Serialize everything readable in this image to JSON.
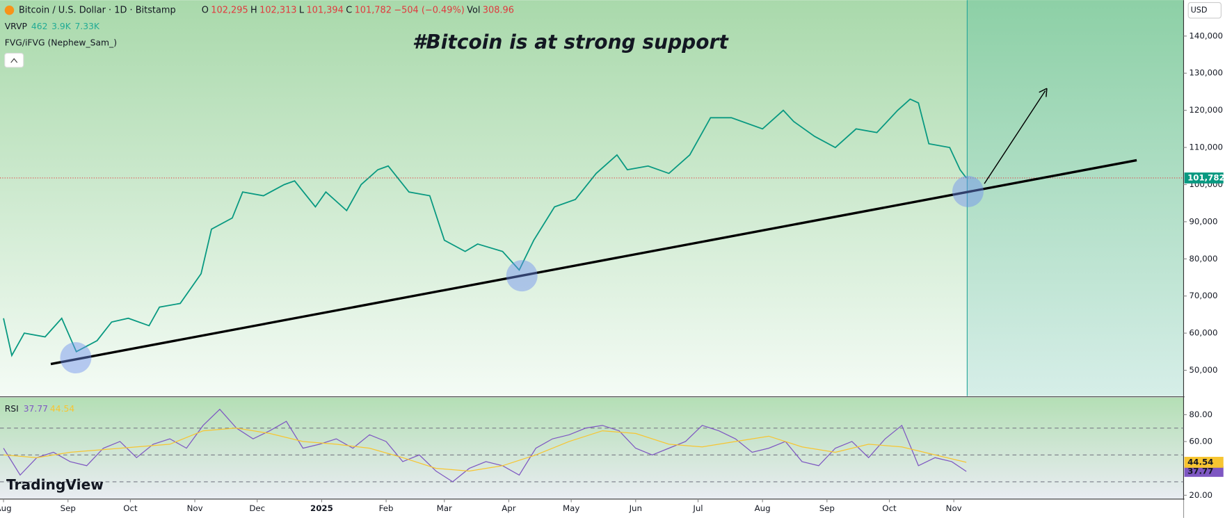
{
  "header": {
    "symbol": "Bitcoin / U.S. Dollar · 1D · Bitstamp",
    "ohlc": [
      {
        "key": "O",
        "value": "102,295"
      },
      {
        "key": "H",
        "value": "102,313"
      },
      {
        "key": "L",
        "value": "101,394"
      }
    ],
    "close_key": "C",
    "change": "−504 (−0.49%)",
    "vol_key": "Vol",
    "vol": "308.96",
    "vrvp": {
      "name": "VRVP",
      "values": [
        "462",
        "3.9K",
        "7.33K"
      ]
    },
    "fvg": "FVG/iFVG (Nephew_Sam_)",
    "currency": "USD",
    "brand": "TradingView"
  },
  "chart_data": [
    {
      "type": "line",
      "title": "#Bitcoin is at strong support",
      "color": "#089981",
      "last_label": "101,782",
      "x": [
        0,
        4,
        10,
        20,
        28,
        35,
        45,
        52,
        60,
        70,
        75,
        85,
        95,
        100,
        110,
        115,
        125,
        135,
        140,
        150,
        155,
        165,
        172,
        180,
        185,
        195,
        205,
        212,
        222,
        228,
        240,
        248,
        255,
        265,
        275,
        285,
        295,
        300,
        310,
        320,
        330,
        340,
        350,
        365,
        375,
        380,
        390,
        400,
        410,
        420,
        430,
        436,
        440,
        445,
        455,
        460,
        463
      ],
      "values": [
        64000,
        54000,
        60000,
        59000,
        64000,
        55000,
        58000,
        63000,
        64000,
        62000,
        67000,
        68000,
        76000,
        88000,
        91000,
        98000,
        97000,
        100000,
        101000,
        94000,
        98000,
        93000,
        100000,
        104000,
        105000,
        98000,
        97000,
        85000,
        82000,
        84000,
        82000,
        77000,
        85000,
        94000,
        96000,
        103000,
        108000,
        104000,
        105000,
        103000,
        108000,
        118000,
        118000,
        115000,
        120000,
        117000,
        113000,
        110000,
        115000,
        114000,
        120000,
        123000,
        122000,
        111000,
        110000,
        104000,
        101782
      ],
      "xlim": [
        -1.69,
        567.5
      ],
      "ylim": [
        43060,
        149670
      ],
      "yticks": [
        {
          "value": 50000,
          "label": "50,000"
        },
        {
          "value": 60000,
          "label": "60,000"
        },
        {
          "value": 70000,
          "label": "70,000"
        },
        {
          "value": 80000,
          "label": "80,000"
        },
        {
          "value": 90000,
          "label": "90,000"
        },
        {
          "value": 100000,
          "label": "100,000"
        },
        {
          "value": 110000,
          "label": "110,000"
        },
        {
          "value": 120000,
          "label": "120,000"
        },
        {
          "value": 130000,
          "label": "130,000"
        },
        {
          "value": 140000,
          "label": "140,000"
        }
      ]
    },
    {
      "type": "line",
      "title": "RSI",
      "series": [
        {
          "color": "#7e57c2",
          "last_label": "37.77",
          "x": [
            0,
            8,
            16,
            24,
            32,
            40,
            48,
            56,
            64,
            72,
            80,
            88,
            96,
            104,
            112,
            120,
            128,
            136,
            144,
            152,
            160,
            168,
            176,
            184,
            192,
            200,
            208,
            216,
            224,
            232,
            240,
            248,
            256,
            264,
            272,
            280,
            288,
            296,
            304,
            312,
            320,
            328,
            336,
            344,
            352,
            360,
            368,
            376,
            384,
            392,
            400,
            408,
            416,
            424,
            432,
            440,
            448,
            456,
            463
          ],
          "values": [
            55,
            35,
            48,
            52,
            45,
            42,
            55,
            60,
            48,
            58,
            62,
            55,
            72,
            84,
            70,
            62,
            68,
            75,
            55,
            58,
            62,
            55,
            65,
            60,
            45,
            50,
            38,
            30,
            40,
            45,
            42,
            35,
            55,
            62,
            65,
            70,
            72,
            68,
            55,
            50,
            55,
            60,
            72,
            68,
            62,
            52,
            55,
            60,
            45,
            42,
            55,
            60,
            48,
            62,
            72,
            42,
            48,
            45,
            37.77
          ]
        },
        {
          "color": "#f7c531",
          "last_label": "44.54",
          "x": [
            0,
            16,
            32,
            48,
            64,
            80,
            96,
            112,
            128,
            144,
            160,
            176,
            192,
            208,
            224,
            240,
            256,
            272,
            288,
            304,
            320,
            336,
            352,
            368,
            384,
            400,
            416,
            432,
            448,
            463
          ],
          "values": [
            50,
            48,
            52,
            54,
            56,
            58,
            68,
            70,
            66,
            60,
            58,
            55,
            48,
            40,
            38,
            42,
            50,
            60,
            68,
            66,
            58,
            56,
            60,
            64,
            56,
            52,
            58,
            56,
            50,
            44.54
          ]
        }
      ],
      "levels": [
        70,
        50,
        30
      ],
      "xlim": [
        -1.69,
        567.5
      ],
      "ylim": [
        17.7,
        92.7
      ],
      "yticks": [
        {
          "value": 80,
          "label": "80.00"
        },
        {
          "value": 60,
          "label": "60.00"
        },
        {
          "value": 20,
          "label": "20.00"
        }
      ],
      "xticks": [
        {
          "value": 0,
          "label": "Aug"
        },
        {
          "value": 31,
          "label": "Sep"
        },
        {
          "value": 61,
          "label": "Oct"
        },
        {
          "value": 92,
          "label": "Nov"
        },
        {
          "value": 122,
          "label": "Dec"
        },
        {
          "value": 153,
          "label": "2025"
        },
        {
          "value": 184,
          "label": "Feb"
        },
        {
          "value": 212,
          "label": "Mar"
        },
        {
          "value": 243,
          "label": "Apr"
        },
        {
          "value": 273,
          "label": "May"
        },
        {
          "value": 304,
          "label": "Jun"
        },
        {
          "value": 334,
          "label": "Jul"
        },
        {
          "value": 365,
          "label": "Aug"
        },
        {
          "value": 396,
          "label": "Sep"
        },
        {
          "value": 426,
          "label": "Oct"
        },
        {
          "value": 457,
          "label": "Nov"
        }
      ]
    }
  ]
}
